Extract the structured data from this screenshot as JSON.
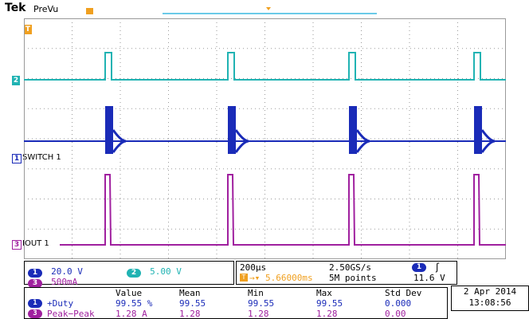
{
  "header": {
    "brand": "Tek",
    "mode": "PreVu"
  },
  "colors": {
    "ch1": "#1a2bb8",
    "ch2": "#20b3b3",
    "ch3": "#a0209f",
    "trigger": "#f0a020",
    "grid": "#9a9a9a"
  },
  "channels": [
    {
      "number": "1",
      "label": "SWITCH 1",
      "scale": "20.0 V"
    },
    {
      "number": "2",
      "label": "",
      "scale": "5.00 V"
    },
    {
      "number": "3",
      "label": "IOUT 1",
      "scale": "500mA"
    }
  ],
  "timebase": {
    "horizontal": "200µs",
    "sample_rate": "2.50GS/s",
    "trigger_delay": "5.66000ms",
    "record_length": "5M points",
    "trigger_source": "1",
    "trigger_slope_icon": "rising-edge-icon",
    "trigger_level": "11.6 V"
  },
  "measurements": {
    "headers": [
      "Value",
      "Mean",
      "Min",
      "Max",
      "Std Dev"
    ],
    "rows": [
      {
        "channel": "1",
        "name": "+Duty",
        "value": "99.55 %",
        "mean": "99.55",
        "min": "99.55",
        "max": "99.55",
        "std": "0.000"
      },
      {
        "channel": "3",
        "name": "Peak−Peak",
        "value": "1.28 A",
        "mean": "1.28",
        "min": "1.28",
        "max": "1.28",
        "std": "0.00"
      }
    ]
  },
  "datetime": {
    "date": "2 Apr 2014",
    "time": "13:08:56"
  }
}
